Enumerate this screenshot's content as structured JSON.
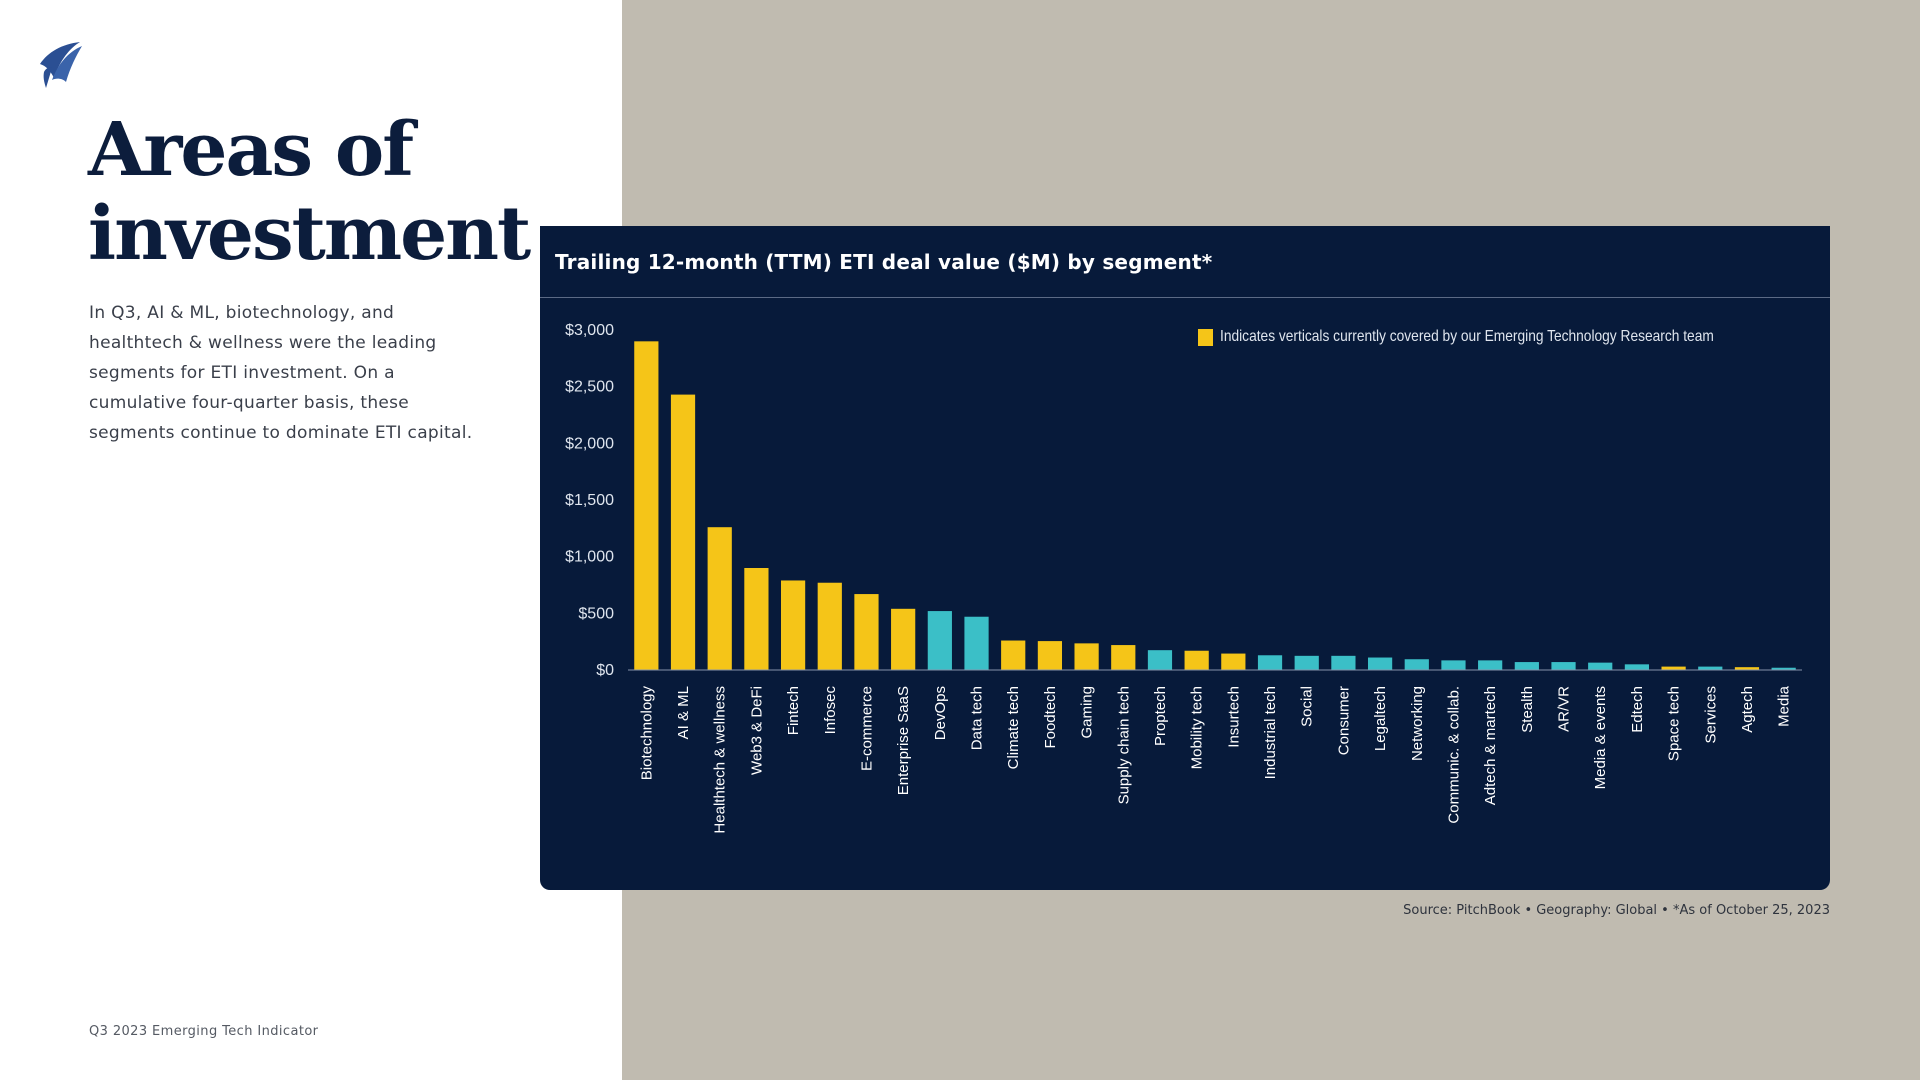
{
  "page": {
    "headline_line1": "Areas of",
    "headline_line2": "investment",
    "intro": "In Q3, AI & ML, biotechnology, and healthtech & wellness were the leading segments for ETI investment. On a cumulative four-quarter basis, these segments continue to dominate ETI capital.",
    "footer_label": "Q3 2023 Emerging Tech Indicator",
    "source_note": "Source: PitchBook  •  Geography: Global  •  *As of October 25, 2023"
  },
  "colors": {
    "covered": "#f5c518",
    "not_covered": "#3bbfc7",
    "card_background": "#071a3a",
    "panel_background": "#c0bbb0",
    "headline": "#0c1d3c"
  },
  "icons": {
    "logo": "sail-logo-icon"
  },
  "chart_data": {
    "type": "bar",
    "title": "Trailing 12-month (TTM) ETI deal value ($M) by segment*",
    "legend": {
      "label": "Indicates verticals currently covered by our Emerging Technology Research team",
      "placement": "top-right"
    },
    "ylim": [
      0,
      3000
    ],
    "yticks": [
      {
        "value": 0,
        "label": "$0"
      },
      {
        "value": 500,
        "label": "$500"
      },
      {
        "value": 1000,
        "label": "$1,000"
      },
      {
        "value": 1500,
        "label": "$1,500"
      },
      {
        "value": 2000,
        "label": "$2,000"
      },
      {
        "value": 2500,
        "label": "$2,500"
      },
      {
        "value": 3000,
        "label": "$3,000"
      }
    ],
    "grid": false,
    "bars": [
      {
        "category": "Biotechnology",
        "value": 2900,
        "covered": true
      },
      {
        "category": "AI & ML",
        "value": 2430,
        "covered": true
      },
      {
        "category": "Healthtech & wellness",
        "value": 1260,
        "covered": true
      },
      {
        "category": "Web3 & DeFi",
        "value": 900,
        "covered": true
      },
      {
        "category": "Fintech",
        "value": 790,
        "covered": true
      },
      {
        "category": "Infosec",
        "value": 770,
        "covered": true
      },
      {
        "category": "E-commerce",
        "value": 670,
        "covered": true
      },
      {
        "category": "Enterprise SaaS",
        "value": 540,
        "covered": true
      },
      {
        "category": "DevOps",
        "value": 520,
        "covered": false
      },
      {
        "category": "Data tech",
        "value": 470,
        "covered": false
      },
      {
        "category": "Climate tech",
        "value": 260,
        "covered": true
      },
      {
        "category": "Foodtech",
        "value": 255,
        "covered": true
      },
      {
        "category": "Gaming",
        "value": 235,
        "covered": true
      },
      {
        "category": "Supply chain tech",
        "value": 220,
        "covered": true
      },
      {
        "category": "Proptech",
        "value": 175,
        "covered": false
      },
      {
        "category": "Mobility tech",
        "value": 170,
        "covered": true
      },
      {
        "category": "Insurtech",
        "value": 145,
        "covered": true
      },
      {
        "category": "Industrial tech",
        "value": 130,
        "covered": false
      },
      {
        "category": "Social",
        "value": 125,
        "covered": false
      },
      {
        "category": "Consumer",
        "value": 125,
        "covered": false
      },
      {
        "category": "Legaltech",
        "value": 110,
        "covered": false
      },
      {
        "category": "Networking",
        "value": 95,
        "covered": false
      },
      {
        "category": "Communic. & collab.",
        "value": 85,
        "covered": false
      },
      {
        "category": "Adtech & martech",
        "value": 85,
        "covered": false
      },
      {
        "category": "Stealth",
        "value": 70,
        "covered": false
      },
      {
        "category": "AR/VR",
        "value": 70,
        "covered": false
      },
      {
        "category": "Media & events",
        "value": 65,
        "covered": false
      },
      {
        "category": "Edtech",
        "value": 50,
        "covered": false
      },
      {
        "category": "Space tech",
        "value": 30,
        "covered": true
      },
      {
        "category": "Services",
        "value": 30,
        "covered": false
      },
      {
        "category": "Agtech",
        "value": 25,
        "covered": true
      },
      {
        "category": "Media",
        "value": 20,
        "covered": false
      }
    ]
  }
}
